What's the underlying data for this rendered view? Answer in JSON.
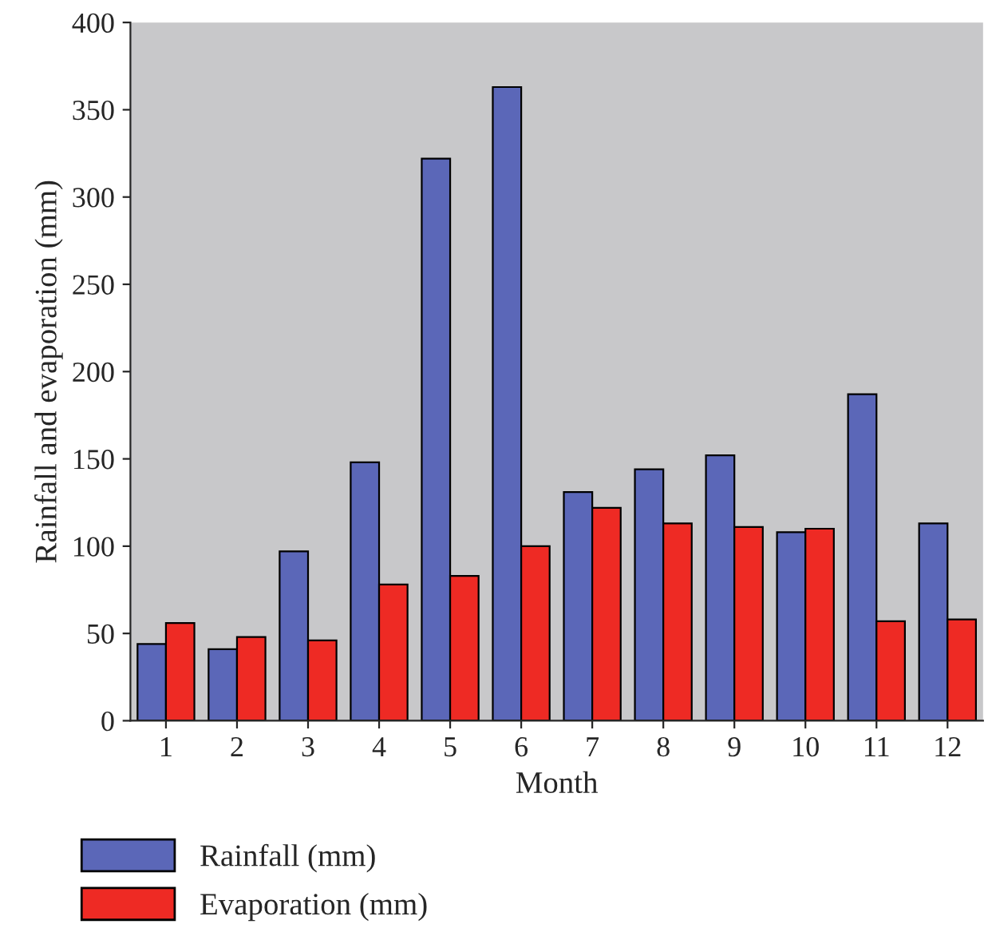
{
  "chart_data": {
    "type": "bar",
    "xlabel": "Month",
    "ylabel": "Rainfall and evaporation (mm)",
    "categories": [
      "1",
      "2",
      "3",
      "4",
      "5",
      "6",
      "7",
      "8",
      "9",
      "10",
      "11",
      "12"
    ],
    "series": [
      {
        "name": "Rainfall (mm)",
        "color": "#5b67b8",
        "values": [
          44,
          41,
          97,
          148,
          322,
          363,
          131,
          144,
          152,
          108,
          187,
          113
        ]
      },
      {
        "name": "Evaporation (mm)",
        "color": "#ee2a24",
        "values": [
          56,
          48,
          46,
          78,
          83,
          100,
          122,
          113,
          111,
          110,
          57,
          58
        ]
      }
    ],
    "ylim": [
      0,
      400
    ],
    "yticks": [
      0,
      50,
      100,
      150,
      200,
      250,
      300,
      350,
      400
    ],
    "grid": false,
    "legend": "bottom left"
  }
}
